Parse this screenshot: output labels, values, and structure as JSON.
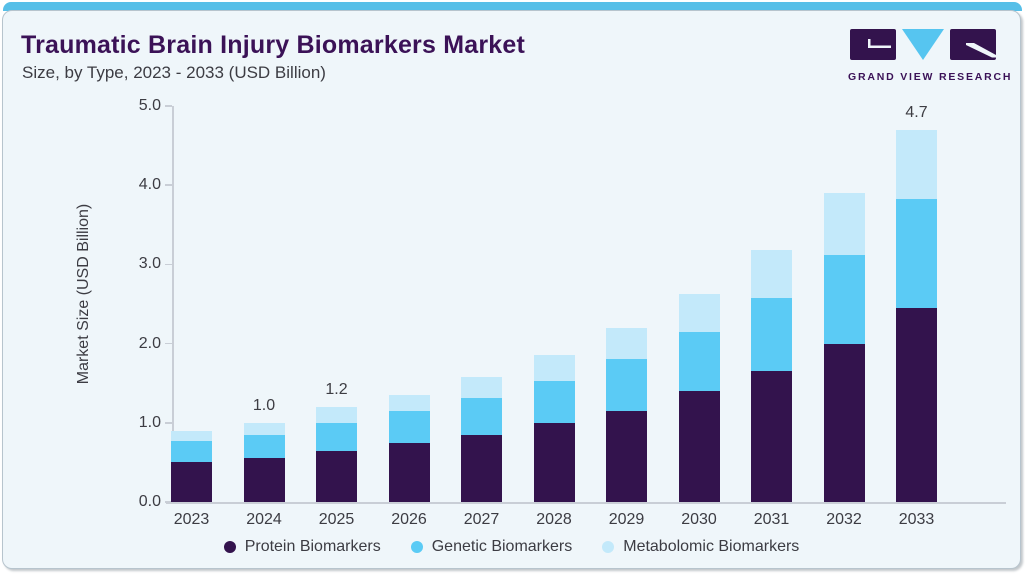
{
  "header": {
    "title": "Traumatic Brain Injury Biomarkers Market",
    "subtitle": "Size, by Type, 2023 - 2033 (USD Billion)"
  },
  "logo": {
    "text": "GRAND VIEW RESEARCH"
  },
  "colors": {
    "topbar": "#56bfe8",
    "card_bg": "#eff6fa",
    "card_border": "#b7c4cd",
    "title": "#3b1257",
    "text": "#3c3c43",
    "axis": "#c9ced6",
    "logo_purple": "#33134d",
    "logo_blue": "#56c5f0"
  },
  "chart_data": {
    "type": "bar",
    "stacked": true,
    "title": "Traumatic Brain Injury Biomarkers Market Size, by Type, 2023 - 2033 (USD Billion)",
    "ylabel": "Market Size (USD Billion)",
    "xlabel": "",
    "ylim": [
      0,
      5
    ],
    "yticks": [
      "0.0",
      "1.0",
      "2.0",
      "3.0",
      "4.0",
      "5.0"
    ],
    "grid": false,
    "legend_position": "bottom",
    "categories": [
      "2023",
      "2024",
      "2025",
      "2026",
      "2027",
      "2028",
      "2029",
      "2030",
      "2031",
      "2032",
      "2033"
    ],
    "series": [
      {
        "name": "Protein Biomarkers",
        "color": "#33134d",
        "values": [
          0.5,
          0.55,
          0.65,
          0.75,
          0.85,
          1.0,
          1.15,
          1.4,
          1.65,
          2.0,
          2.45
        ]
      },
      {
        "name": "Genetic Biomarkers",
        "color": "#5bcbf5",
        "values": [
          0.27,
          0.3,
          0.35,
          0.4,
          0.46,
          0.53,
          0.65,
          0.75,
          0.93,
          1.12,
          1.37
        ]
      },
      {
        "name": "Metabolomic Biomarkers",
        "color": "#c3e9fa",
        "values": [
          0.13,
          0.15,
          0.2,
          0.2,
          0.27,
          0.32,
          0.4,
          0.48,
          0.6,
          0.78,
          0.88
        ]
      }
    ],
    "totals": [
      0.9,
      1.0,
      1.2,
      1.35,
      1.58,
      1.85,
      2.2,
      2.63,
      3.18,
      3.9,
      4.7
    ],
    "value_labels": [
      "",
      "1.0",
      "1.2",
      "",
      "",
      "",
      "",
      "",
      "",
      "",
      "4.7"
    ]
  }
}
